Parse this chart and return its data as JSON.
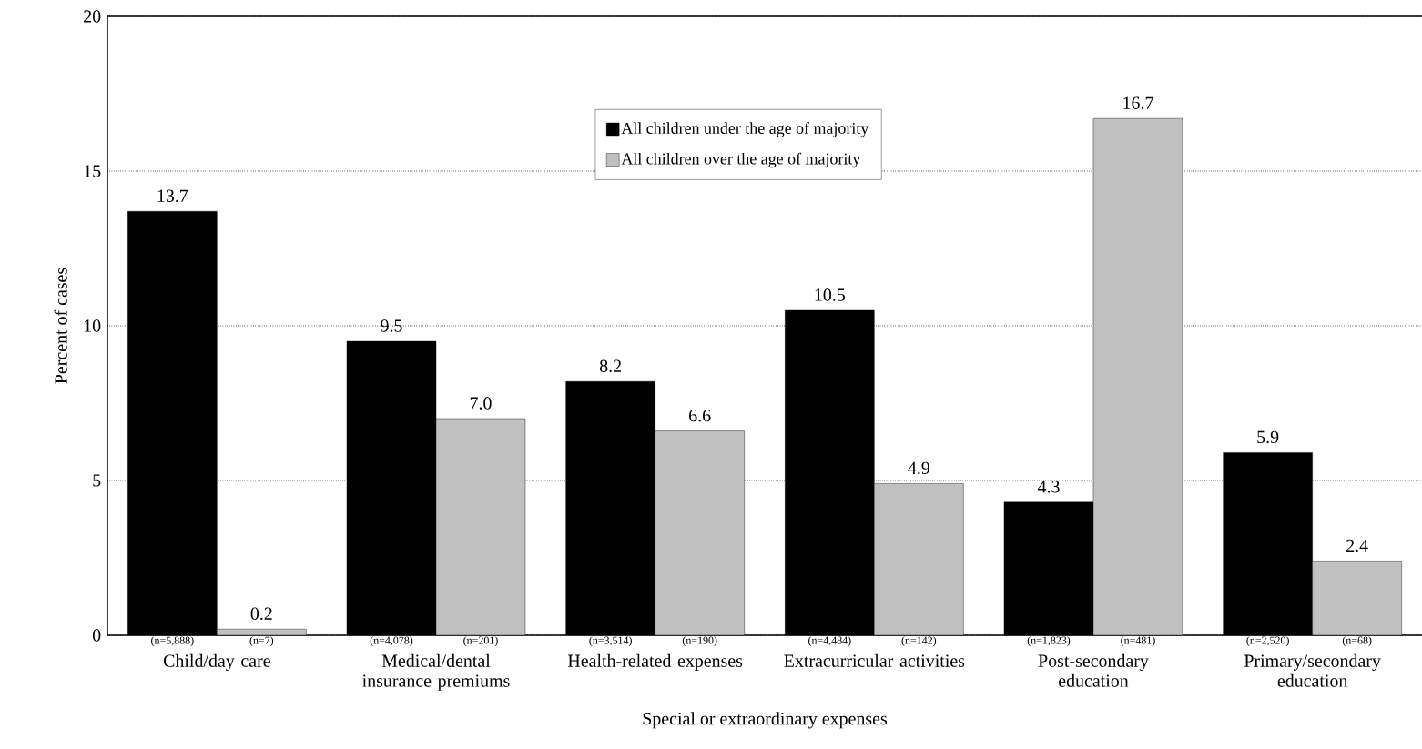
{
  "chart_data": {
    "type": "bar",
    "xlabel": "Special or extraordinary expenses",
    "ylabel": "Percent of cases",
    "categories": [
      "Child/day care",
      "Medical/dental insurance premiums",
      "Health-related expenses",
      "Extracurricular activities",
      "Post-secondary education",
      "Primary/secondary education"
    ],
    "series": [
      {
        "name": "All children under the age of majority",
        "color": "#000000",
        "values": [
          13.7,
          9.5,
          8.2,
          10.5,
          4.3,
          5.9
        ],
        "value_labels": [
          "13.7",
          "9.5",
          "8.2",
          "10.5",
          "4.3",
          "5.9"
        ]
      },
      {
        "name": "All children over the age of majority",
        "color": "#c0c0c0",
        "values": [
          0.2,
          7.0,
          6.6,
          4.9,
          16.7,
          2.4
        ],
        "value_labels": [
          "0.2",
          "7.0",
          "6.6",
          "4.9",
          "16.7",
          "2.4"
        ]
      }
    ],
    "ylim": [
      0,
      20
    ],
    "yticks": [
      0,
      5,
      10,
      15,
      20
    ],
    "grid": "y",
    "legend": "top",
    "annotations": [
      "(n=5,888)",
      "(n=7)",
      "(n=4,078)",
      "(n=201)",
      "(n=3,514)",
      "(n=190)",
      "(n=4,484)",
      "(n=142)",
      "(n=1,823)",
      "(n=481)",
      "(n=2,520)",
      "(n=68)"
    ]
  }
}
